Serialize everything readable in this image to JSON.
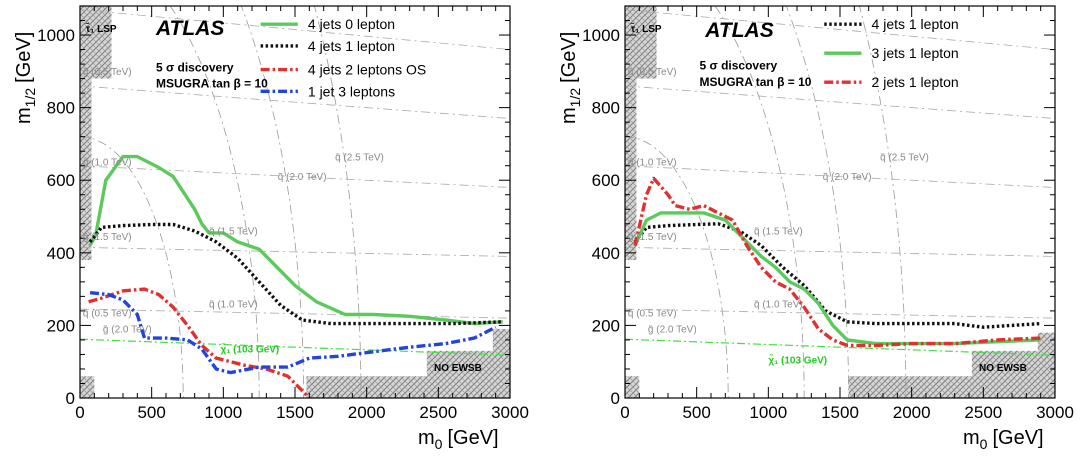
{
  "chart_data": [
    {
      "type": "line",
      "panel": "left",
      "xlabel": "m",
      "xlabel_sub": "0",
      "xlabel_unit": "[GeV]",
      "ylabel": "m",
      "ylabel_sub": "1/2",
      "ylabel_unit": "[GeV]",
      "xlim": [
        0,
        3000
      ],
      "ylim": [
        0,
        1080
      ],
      "xticks": [
        0,
        500,
        1000,
        1500,
        2000,
        2500,
        3000
      ],
      "yticks": [
        0,
        200,
        400,
        600,
        800,
        1000
      ],
      "brand": "ATLAS",
      "info_line1": "5 σ discovery",
      "info_line2": "MSUGRA tan β = 10",
      "lsp_label": "τ̃₁ LSP",
      "no_ewsb_label": "NO EWSB",
      "chargino_label": "χ̃₁ (103 GeV)",
      "squark_labels": [
        "q̃ (0.5 TeV)",
        "q̃ (1.0 TeV)",
        "q̃ (1.5 TeV)",
        "q̃ (2.0 TeV)",
        "q̃ (2.5 TeV)"
      ],
      "gluino_labels": [
        "g̃ (0.5 TeV)",
        "g̃ (1.0 TeV)",
        "g̃ (1.5 TeV)",
        "g̃ (2.0 TeV)"
      ],
      "legend_position": "top-right",
      "series": [
        {
          "name": "4 jets 0 lepton",
          "color": "#5cc95c",
          "style": "solid",
          "x": [
            70,
            110,
            180,
            300,
            400,
            550,
            650,
            800,
            850,
            900,
            1000,
            1100,
            1250,
            1400,
            1500,
            1650,
            1850,
            2050,
            2300,
            2550,
            2750,
            2950
          ],
          "y": [
            420,
            450,
            600,
            665,
            665,
            635,
            610,
            520,
            480,
            455,
            455,
            430,
            410,
            350,
            310,
            265,
            230,
            230,
            225,
            215,
            205,
            210
          ]
        },
        {
          "name": "4 jets 1 lepton",
          "color": "#111111",
          "style": "dotted",
          "x": [
            70,
            150,
            300,
            500,
            650,
            800,
            950,
            1100,
            1250,
            1400,
            1550,
            1750,
            2000,
            2300,
            2600,
            2950
          ],
          "y": [
            430,
            470,
            475,
            478,
            478,
            460,
            430,
            385,
            320,
            255,
            215,
            205,
            205,
            205,
            205,
            210
          ]
        },
        {
          "name": "4 jets 2 leptons OS",
          "color": "#e03030",
          "style": "dashdot",
          "x": [
            60,
            150,
            300,
            450,
            550,
            650,
            750,
            850,
            950,
            1050,
            1150,
            1300,
            1450,
            1550,
            1600
          ],
          "y": [
            265,
            275,
            295,
            300,
            285,
            250,
            200,
            145,
            110,
            100,
            90,
            80,
            60,
            20,
            0
          ]
        },
        {
          "name": "1 jet 3 leptons",
          "color": "#2244dd",
          "style": "dashdot",
          "x": [
            70,
            200,
            300,
            400,
            450,
            600,
            750,
            850,
            950,
            1050,
            1250,
            1450,
            1600,
            1800,
            2000,
            2300,
            2550,
            2750,
            2900
          ],
          "y": [
            290,
            285,
            270,
            230,
            165,
            165,
            160,
            135,
            80,
            70,
            85,
            85,
            110,
            115,
            125,
            140,
            150,
            165,
            195
          ]
        }
      ]
    },
    {
      "type": "line",
      "panel": "right",
      "xlabel": "m",
      "xlabel_sub": "0",
      "xlabel_unit": "[GeV]",
      "ylabel": "m",
      "ylabel_sub": "1/2",
      "ylabel_unit": "[GeV]",
      "xlim": [
        0,
        3000
      ],
      "ylim": [
        0,
        1080
      ],
      "xticks": [
        0,
        500,
        1000,
        1500,
        2000,
        2500,
        3000
      ],
      "yticks": [
        0,
        200,
        400,
        600,
        800,
        1000
      ],
      "brand": "ATLAS",
      "info_line1": "5 σ discovery",
      "info_line2": "MSUGRA tan β = 10",
      "lsp_label": "τ̃₁ LSP",
      "no_ewsb_label": "NO EWSB",
      "chargino_label": "χ̃₁ (103 GeV)",
      "squark_labels": [
        "q̃ (0.5 TeV)",
        "q̃ (1.0 TeV)",
        "q̃ (1.5 TeV)",
        "q̃ (2.0 TeV)",
        "q̃ (2.5 TeV)"
      ],
      "gluino_labels": [
        "g̃ (0.5 TeV)",
        "g̃ (1.0 TeV)",
        "g̃ (1.5 TeV)",
        "g̃ (2.0 TeV)"
      ],
      "legend_position": "top-right",
      "series": [
        {
          "name": "4 jets 1 lepton",
          "color": "#111111",
          "style": "dotted",
          "x": [
            70,
            150,
            300,
            500,
            650,
            800,
            950,
            1100,
            1250,
            1400,
            1550,
            1750,
            2000,
            2300,
            2500,
            2700,
            2900
          ],
          "y": [
            430,
            470,
            475,
            478,
            480,
            460,
            420,
            360,
            310,
            240,
            210,
            205,
            205,
            205,
            195,
            200,
            205
          ]
        },
        {
          "name": "3 jets 1 lepton",
          "color": "#5cc95c",
          "style": "solid",
          "x": [
            70,
            150,
            250,
            400,
            550,
            700,
            850,
            950,
            1050,
            1150,
            1250,
            1350,
            1450,
            1550,
            1750,
            2000,
            2300,
            2600,
            2900
          ],
          "y": [
            420,
            490,
            510,
            510,
            510,
            490,
            430,
            390,
            360,
            320,
            300,
            260,
            200,
            160,
            150,
            150,
            150,
            155,
            160
          ]
        },
        {
          "name": "2 jets 1 lepton",
          "color": "#e03030",
          "style": "dashdot",
          "x": [
            70,
            150,
            200,
            300,
            350,
            450,
            550,
            650,
            750,
            850,
            950,
            1050,
            1150,
            1250,
            1350,
            1450,
            1550,
            1750,
            2000,
            2300,
            2600,
            2900
          ],
          "y": [
            420,
            560,
            605,
            560,
            530,
            520,
            530,
            510,
            490,
            420,
            360,
            320,
            300,
            250,
            190,
            160,
            145,
            145,
            150,
            150,
            160,
            165
          ]
        }
      ]
    }
  ]
}
